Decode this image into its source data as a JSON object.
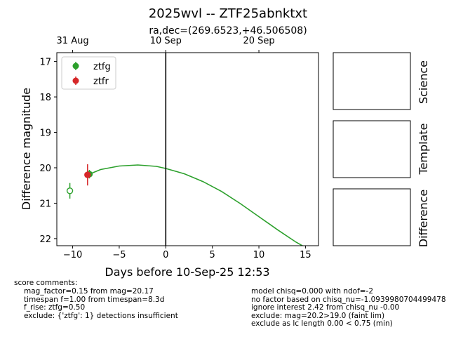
{
  "chart_data": {
    "type": "scatter",
    "title": "2025wvl -- ZTF25abnktxt",
    "subtitle": "ra,dec=(269.6523,+46.506508)",
    "xlabel": "Days before 10-Sep-25 12:53",
    "ylabel": "Difference magnitude",
    "xlim": [
      -11.7,
      16.4
    ],
    "ylim": [
      22.2,
      16.75
    ],
    "y_inverted": true,
    "x_ticks": [
      -10,
      -5,
      0,
      5,
      10,
      15
    ],
    "x_tick_labels": [
      "−10",
      "−5",
      "0",
      "5",
      "10",
      "15"
    ],
    "y_ticks": [
      17,
      18,
      19,
      20,
      21,
      22
    ],
    "y_tick_labels": [
      "17",
      "18",
      "19",
      "20",
      "21",
      "22"
    ],
    "top_axis": {
      "ticks": [
        -10,
        0,
        10
      ],
      "labels": [
        "31 Aug",
        "10 Sep",
        "20 Sep"
      ]
    },
    "vline_x": 0,
    "legend_position": "upper-left",
    "series": [
      {
        "name": "ztfg",
        "color": "#2ca02c",
        "points": [
          {
            "x": -10.3,
            "y": 20.65,
            "err": 0.22,
            "filled": false
          },
          {
            "x": -8.2,
            "y": 20.18,
            "err": 0.12,
            "filled": true
          }
        ]
      },
      {
        "name": "ztfr",
        "color": "#d62728",
        "points": [
          {
            "x": -8.4,
            "y": 20.2,
            "err": 0.3,
            "filled": true
          }
        ]
      }
    ],
    "model_curve": {
      "color": "#2ca02c",
      "x": [
        -8.4,
        -7,
        -5,
        -3,
        -1,
        0,
        2,
        4,
        6,
        8,
        10,
        12,
        14,
        15.0
      ],
      "y": [
        20.2,
        20.05,
        19.95,
        19.92,
        19.96,
        20.02,
        20.17,
        20.39,
        20.67,
        21.01,
        21.38,
        21.75,
        22.1,
        22.25
      ]
    }
  },
  "panels": {
    "science_label": "Science",
    "template_label": "Template",
    "difference_label": "Difference"
  },
  "comments": {
    "left_title": "score comments:",
    "left_lines": [
      "mag_factor=0.15 from mag=20.17",
      "timespan f=1.00 from timespan=8.3d",
      "f_rise: ztfg=0.50",
      "exclude: {'ztfg': 1} detections insufficient"
    ],
    "right_lines": [
      "model chisq=0.000 with ndof=-2",
      "no factor based on chisq_nu=-1.0939980704499478",
      "ignore interest 2.42 from chisq_nu -0.00",
      "exclude: mag=20.2>19.0 (faint lim)",
      "exclude as lc length 0.00 < 0.75 (min)"
    ]
  }
}
